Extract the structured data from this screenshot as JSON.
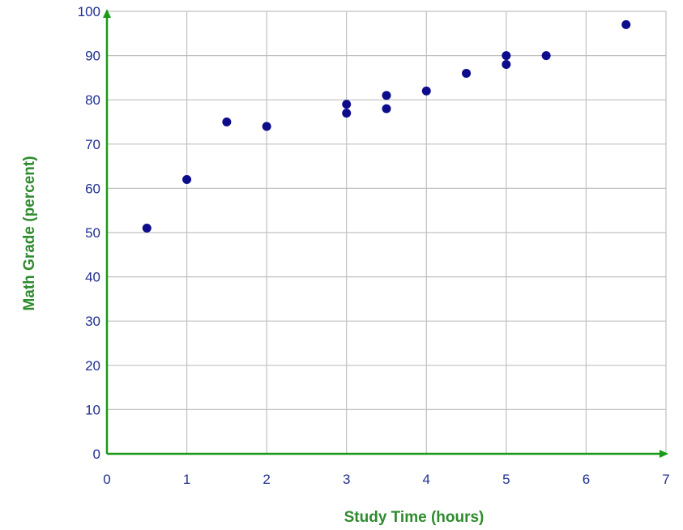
{
  "chart_data": {
    "type": "scatter",
    "title": "",
    "xlabel": "Study Time (hours)",
    "ylabel": "Math Grade (percent)",
    "xlim": [
      0,
      7
    ],
    "ylim": [
      0,
      100
    ],
    "xticks": [
      0,
      1,
      2,
      3,
      4,
      5,
      6,
      7
    ],
    "yticks": [
      0,
      10,
      20,
      30,
      40,
      50,
      60,
      70,
      80,
      90,
      100
    ],
    "grid": true,
    "legend": "none",
    "colors": {
      "points": "#0d0d8c",
      "axes": "#1a9a1a",
      "grid": "#c0c0c0",
      "ticks": "#1f2f8f",
      "labels": "#2e8b2e"
    },
    "series": [
      {
        "points": [
          {
            "x": 0.5,
            "y": 51
          },
          {
            "x": 1,
            "y": 62
          },
          {
            "x": 1.5,
            "y": 75
          },
          {
            "x": 2,
            "y": 74
          },
          {
            "x": 3,
            "y": 79
          },
          {
            "x": 3,
            "y": 77
          },
          {
            "x": 3.5,
            "y": 81
          },
          {
            "x": 3.5,
            "y": 78
          },
          {
            "x": 4,
            "y": 82
          },
          {
            "x": 4.5,
            "y": 86
          },
          {
            "x": 5,
            "y": 90
          },
          {
            "x": 5,
            "y": 88
          },
          {
            "x": 5.5,
            "y": 90
          },
          {
            "x": 6.5,
            "y": 97
          }
        ]
      }
    ]
  }
}
